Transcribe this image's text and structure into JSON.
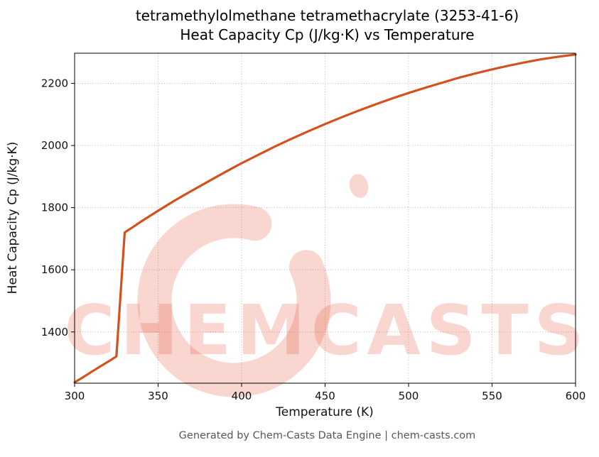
{
  "chart_data": {
    "type": "line",
    "title_line1": "tetramethylolmethane tetramethacrylate (3253-41-6)",
    "title_line2": "Heat Capacity Cp (J/kg·K) vs Temperature",
    "xlabel": "Temperature (K)",
    "ylabel": "Heat Capacity Cp (J/kg·K)",
    "xlim": [
      300,
      600
    ],
    "ylim": [
      1235,
      2297
    ],
    "xticks": [
      300,
      350,
      400,
      450,
      500,
      550,
      600
    ],
    "yticks": [
      1400,
      1600,
      1800,
      2000,
      2200
    ],
    "grid": true,
    "line_color": "#d4511e",
    "watermark": "CHEMCASTS",
    "watermark_color": "#e8563c",
    "watermark_opacity": 0.24,
    "series": [
      {
        "name": "Heat Capacity Cp",
        "points": [
          [
            300,
            1238
          ],
          [
            305,
            1254
          ],
          [
            310,
            1271
          ],
          [
            315,
            1288
          ],
          [
            320,
            1304
          ],
          [
            325,
            1321
          ],
          [
            330,
            1720
          ],
          [
            335,
            1738
          ],
          [
            340,
            1756
          ],
          [
            345,
            1773
          ],
          [
            350,
            1790
          ],
          [
            360,
            1823
          ],
          [
            370,
            1854
          ],
          [
            380,
            1884
          ],
          [
            390,
            1914
          ],
          [
            400,
            1943
          ],
          [
            410,
            1970
          ],
          [
            420,
            1997
          ],
          [
            430,
            2022
          ],
          [
            440,
            2046
          ],
          [
            450,
            2069
          ],
          [
            460,
            2091
          ],
          [
            470,
            2112
          ],
          [
            480,
            2132
          ],
          [
            490,
            2151
          ],
          [
            500,
            2169
          ],
          [
            510,
            2186
          ],
          [
            520,
            2202
          ],
          [
            530,
            2218
          ],
          [
            540,
            2232
          ],
          [
            550,
            2245
          ],
          [
            560,
            2257
          ],
          [
            570,
            2268
          ],
          [
            580,
            2278
          ],
          [
            590,
            2286
          ],
          [
            600,
            2293
          ]
        ]
      }
    ]
  },
  "footer": {
    "text": "Generated by Chem-Casts Data Engine | chem-casts.com"
  }
}
